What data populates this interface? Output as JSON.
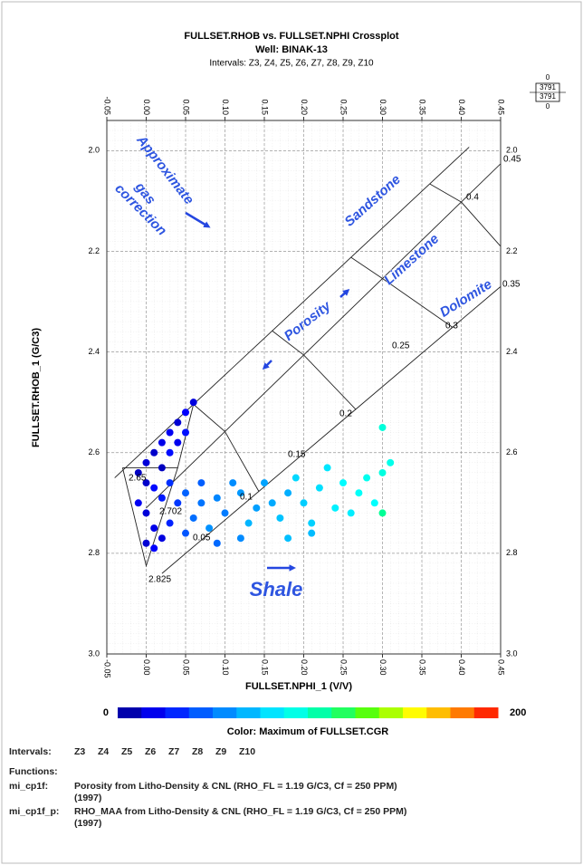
{
  "chart_data": {
    "type": "scatter",
    "title": "FULLSET.RHOB vs. FULLSET.NPHI Crossplot",
    "subtitle": "Well: BINAK-13",
    "intervals_caption": "Intervals: Z3, Z4, Z5, Z6, Z7, Z8, Z9, Z10",
    "x_label": "FULLSET.NPHI_1 (V/V)",
    "y_label": "FULLSET.RHOB_1 (G/C3)",
    "xlim": [
      -0.05,
      0.45
    ],
    "ylim": [
      1.94,
      3.0
    ],
    "y_inverted": true,
    "grid": true,
    "xticks": [
      -0.05,
      {
        "value": 0,
        "label": "0.00"
      },
      0.05,
      {
        "value": 0.1,
        "label": "0.10"
      },
      0.15,
      {
        "value": 0.2,
        "label": "0.20"
      },
      0.25,
      {
        "value": 0.3,
        "label": "0.30"
      },
      0.35,
      {
        "value": 0.4,
        "label": "0.40"
      },
      0.45
    ],
    "yticks": [
      {
        "value": 2,
        "label": "2.0"
      },
      2.2,
      2.4,
      2.6,
      2.8,
      {
        "value": 3,
        "label": "3.0"
      }
    ],
    "x": [
      0.0,
      0.01,
      0.02,
      0.03,
      0.04,
      0.05,
      0.06,
      0.03,
      0.02,
      0.0,
      -0.01,
      0.0,
      0.01,
      0.0,
      0.01,
      0.02,
      0.03,
      0.01,
      0.04,
      0.05,
      0.02,
      -0.01,
      0.03,
      0.04,
      0.05,
      0.07,
      0.09,
      0.06,
      0.1,
      0.12,
      0.08,
      0.14,
      0.11,
      0.16,
      0.05,
      0.13,
      0.18,
      0.07,
      0.15,
      0.17,
      0.2,
      0.22,
      0.19,
      0.24,
      0.21,
      0.25,
      0.27,
      0.23,
      0.28,
      0.26,
      0.3,
      0.31,
      0.3,
      0.29,
      0.21,
      0.18,
      0.12,
      0.09,
      0.3
    ],
    "y": [
      2.62,
      2.6,
      2.58,
      2.56,
      2.54,
      2.52,
      2.5,
      2.6,
      2.63,
      2.66,
      2.7,
      2.72,
      2.75,
      2.78,
      2.79,
      2.69,
      2.74,
      2.67,
      2.58,
      2.56,
      2.77,
      2.64,
      2.66,
      2.7,
      2.68,
      2.7,
      2.69,
      2.73,
      2.72,
      2.68,
      2.75,
      2.71,
      2.66,
      2.7,
      2.76,
      2.74,
      2.68,
      2.66,
      2.66,
      2.73,
      2.7,
      2.67,
      2.65,
      2.71,
      2.74,
      2.66,
      2.68,
      2.63,
      2.65,
      2.72,
      2.64,
      2.62,
      2.55,
      2.7,
      2.76,
      2.77,
      2.77,
      2.78,
      2.72
    ],
    "c": [
      15,
      12,
      18,
      20,
      14,
      22,
      16,
      25,
      10,
      12,
      20,
      15,
      18,
      14,
      22,
      28,
      30,
      24,
      19,
      26,
      16,
      11,
      33,
      35,
      45,
      50,
      55,
      48,
      52,
      60,
      58,
      62,
      57,
      65,
      42,
      68,
      66,
      44,
      63,
      72,
      75,
      80,
      78,
      85,
      76,
      88,
      90,
      82,
      92,
      84,
      95,
      93,
      96,
      89,
      70,
      71,
      56,
      47,
      110
    ],
    "clim": [
      0,
      200
    ],
    "color_label": "Color: Maximum of FULLSET.CGR",
    "colormap": [
      "#00008b",
      "#0000ff",
      "#0060ff",
      "#00b0ff",
      "#00ffff",
      "#00ff90",
      "#60ff00",
      "#ffff00",
      "#ff9000",
      "#ff0000"
    ],
    "overlays": [
      {
        "x": [
          -0.04,
          0.41
        ],
        "y": [
          2.65,
          1.993
        ]
      },
      {
        "x": [
          0.0,
          0.45
        ],
        "y": [
          2.71,
          2.026
        ]
      },
      {
        "x": [
          0.02,
          0.45
        ],
        "y": [
          2.84,
          2.27
        ]
      },
      {
        "x": [
          0.06,
          0.1,
          0.143
        ],
        "y": [
          2.504,
          2.558,
          2.677
        ]
      },
      {
        "x": [
          0.16,
          0.2,
          0.266
        ],
        "y": [
          2.358,
          2.406,
          2.514
        ]
      },
      {
        "x": [
          0.26,
          0.3,
          0.389
        ],
        "y": [
          2.212,
          2.254,
          2.351
        ]
      },
      {
        "x": [
          0.36,
          0.4,
          0.45
        ],
        "y": [
          2.066,
          2.102,
          2.19
        ]
      },
      {
        "x": [
          -0.03,
          0.0,
          0.04,
          -0.03
        ],
        "y": [
          2.63,
          2.825,
          2.63,
          2.63
        ]
      },
      {
        "x": [
          0.04,
          0.06
        ],
        "y": [
          2.63,
          2.504
        ]
      }
    ],
    "annotations": {
      "gas": [
        "Approximate",
        "gas",
        "correction"
      ],
      "sandstone": "Sandstone",
      "limestone": "Limestone",
      "dolomite": "Dolomite",
      "porosity": "Porosity",
      "shale": "Shale"
    },
    "porosity_labels": [
      "0.45",
      "0.4",
      "0.35",
      "0.3",
      "0.25",
      "0.2",
      "0.15",
      "0.1",
      "0.05"
    ],
    "matrix_labels": [
      "2.65",
      "2.702",
      "2.825"
    ],
    "point_counts": {
      "above": 0,
      "inside": [
        3791,
        3791
      ],
      "below": 0
    },
    "footer": {
      "intervals_label": "Intervals:",
      "intervals": [
        "Z3",
        "Z4",
        "Z5",
        "Z6",
        "Z7",
        "Z8",
        "Z9",
        "Z10"
      ],
      "functions_label": "Functions:",
      "functions": [
        {
          "name": "mi_cp1f:",
          "text": "Porosity from Litho-Density & CNL (RHO_FL = 1.19 G/C3, Cf = 250 PPM)",
          "year": "(1997)"
        },
        {
          "name": "mi_cp1f_p:",
          "text": "RHO_MAA from Litho-Density & CNL (RHO_FL = 1.19 G/C3, Cf = 250 PPM)",
          "year": "(1997)"
        }
      ]
    }
  }
}
